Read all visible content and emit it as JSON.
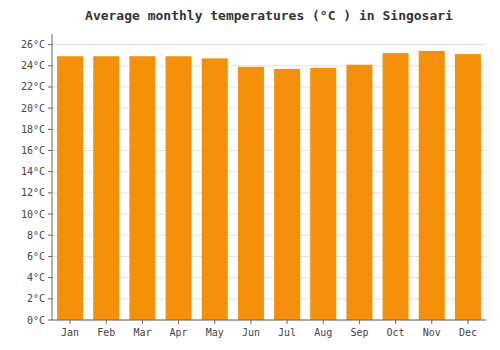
{
  "chart_data": {
    "type": "bar",
    "title": "Average monthly temperatures (°C ) in Singosari",
    "categories": [
      "Jan",
      "Feb",
      "Mar",
      "Apr",
      "May",
      "Jun",
      "Jul",
      "Aug",
      "Sep",
      "Oct",
      "Nov",
      "Dec"
    ],
    "values": [
      24.9,
      24.9,
      24.9,
      24.9,
      24.7,
      23.9,
      23.7,
      23.8,
      24.1,
      25.2,
      25.4,
      25.1
    ],
    "color": "#F5900A",
    "ylim": [
      0,
      27
    ],
    "yticks": [
      {
        "value": 0,
        "label": "0°C"
      },
      {
        "value": 2,
        "label": "2°C"
      },
      {
        "value": 4,
        "label": "4°C"
      },
      {
        "value": 6,
        "label": "6°C"
      },
      {
        "value": 8,
        "label": "8°C"
      },
      {
        "value": 10,
        "label": "10°C"
      },
      {
        "value": 12,
        "label": "12°C"
      },
      {
        "value": 14,
        "label": "14°C"
      },
      {
        "value": 16,
        "label": "16°C"
      },
      {
        "value": 18,
        "label": "18°C"
      },
      {
        "value": 20,
        "label": "20°C"
      },
      {
        "value": 22,
        "label": "22°C"
      },
      {
        "value": 24,
        "label": "24°C"
      },
      {
        "value": 26,
        "label": "26°C"
      }
    ],
    "grid": true
  }
}
